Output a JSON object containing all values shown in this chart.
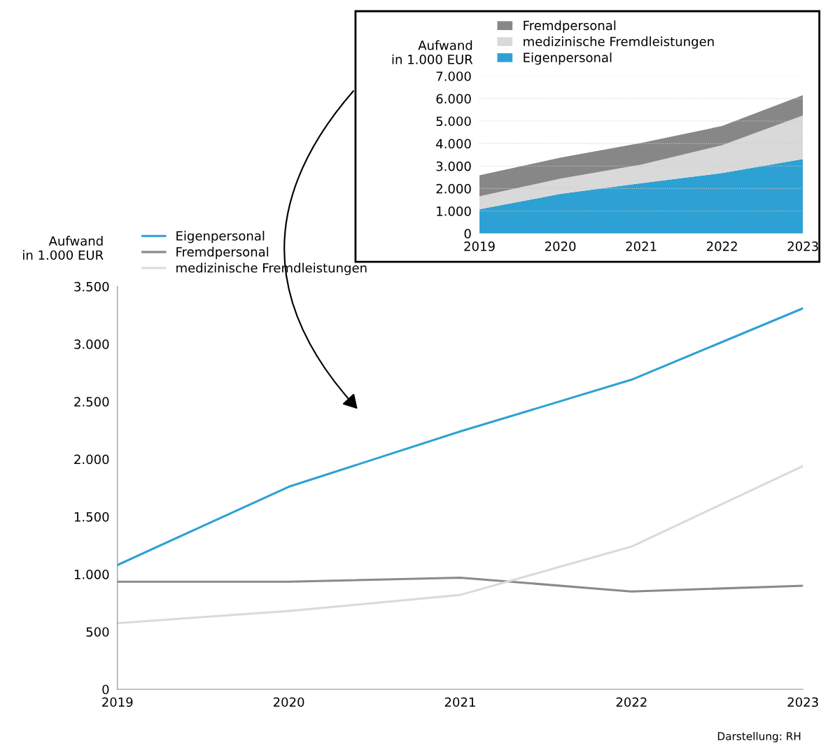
{
  "chart_data": [
    {
      "type": "line",
      "ylabel": "Aufwand\nin 1.000 EUR",
      "categories": [
        "2019",
        "2020",
        "2021",
        "2022",
        "2023"
      ],
      "series": [
        {
          "name": "Eigenpersonal",
          "color": "#2ea1d4",
          "values": [
            1080,
            1760,
            2240,
            2690,
            3310
          ]
        },
        {
          "name": "Fremdpersonal",
          "color": "#8a8a8a",
          "values": [
            935,
            935,
            970,
            850,
            900
          ]
        },
        {
          "name": "medizinische Fremdleistungen",
          "color": "#dadada",
          "values": [
            575,
            680,
            820,
            1240,
            1940
          ]
        }
      ],
      "ylim": [
        0,
        3500
      ],
      "yticks": [
        0,
        500,
        {
          "value": 1000,
          "label": "1.000"
        },
        {
          "value": 1500,
          "label": "1.500"
        },
        {
          "value": 2000,
          "label": "2.000"
        },
        {
          "value": 2500,
          "label": "2.500"
        },
        {
          "value": 3000,
          "label": "3.000"
        },
        {
          "value": 3500,
          "label": "3.500"
        }
      ],
      "grid": false,
      "legend": "top left",
      "line_style": "solid",
      "marker": "none",
      "annotations": [
        "Darstellung: RH"
      ]
    },
    {
      "type": "area",
      "stacked": true,
      "ylabel": "Aufwand\nin 1.000 EUR",
      "categories": [
        "2019",
        "2020",
        "2021",
        "2022",
        "2023"
      ],
      "series": [
        {
          "name": "Eigenpersonal",
          "color": "#2ea1d4",
          "values": [
            1080,
            1760,
            2240,
            2690,
            3310
          ]
        },
        {
          "name": "medizinische Fremdleistungen",
          "color": "#d9d9d9",
          "values": [
            575,
            680,
            820,
            1240,
            1940
          ]
        },
        {
          "name": "Fremdpersonal",
          "color": "#878787",
          "values": [
            935,
            935,
            970,
            850,
            900
          ]
        }
      ],
      "ylim": [
        0,
        7000
      ],
      "yticks": [
        0,
        {
          "value": 1000,
          "label": "1.000"
        },
        {
          "value": 2000,
          "label": "2.000"
        },
        {
          "value": 3000,
          "label": "3.000"
        },
        {
          "value": 4000,
          "label": "4.000"
        },
        {
          "value": 5000,
          "label": "5.000"
        },
        {
          "value": 6000,
          "label": "6.000"
        },
        {
          "value": 7000,
          "label": "7.000"
        }
      ],
      "grid": "y",
      "legend": "top left"
    }
  ]
}
